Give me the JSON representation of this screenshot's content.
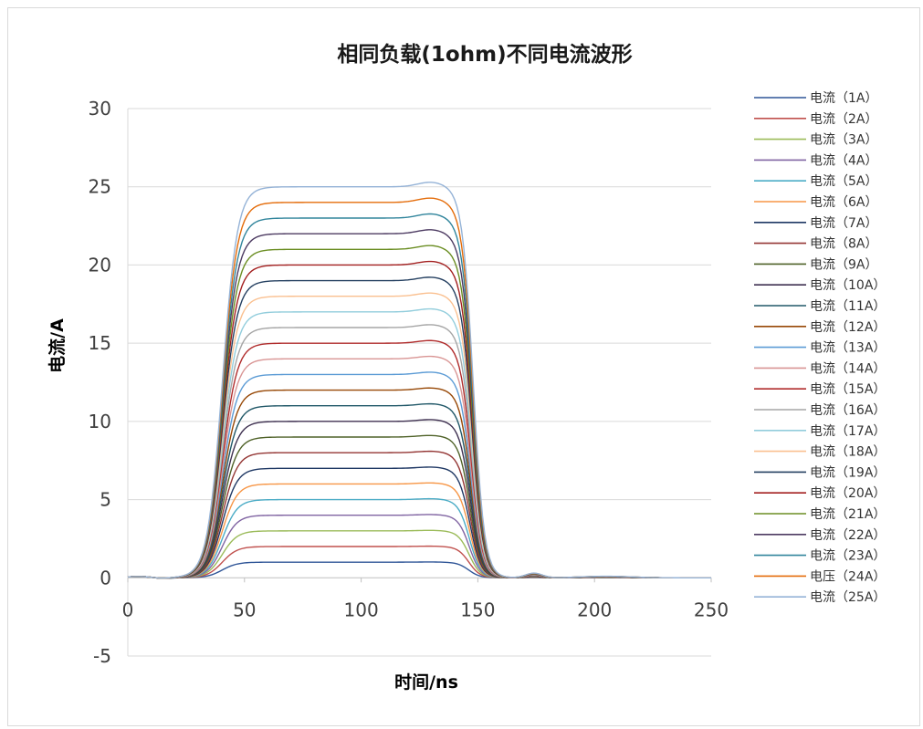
{
  "chart_data": {
    "type": "line",
    "title": "相同负载(1ohm)不同电流波形",
    "xlabel": "时间/ns",
    "ylabel": "电流/A",
    "xlim": [
      0,
      250
    ],
    "ylim": [
      -5,
      30
    ],
    "xticks": [
      "0",
      "50",
      "100",
      "150",
      "200",
      "250"
    ],
    "yticks": [
      "-5",
      "0",
      "5",
      "10",
      "15",
      "20",
      "25",
      "30"
    ],
    "grid": true,
    "legend_position": "right",
    "series": [
      {
        "name": "电流（1A）",
        "color": "#2f5597",
        "plateau": 1
      },
      {
        "name": "电流（2A）",
        "color": "#c0504d",
        "plateau": 2
      },
      {
        "name": "电流（3A）",
        "color": "#9bbb59",
        "plateau": 3
      },
      {
        "name": "电流（4A）",
        "color": "#8064a2",
        "plateau": 4
      },
      {
        "name": "电流（5A）",
        "color": "#4bacc6",
        "plateau": 5
      },
      {
        "name": "电流（6A）",
        "color": "#f79646",
        "plateau": 6
      },
      {
        "name": "电流（7A）",
        "color": "#1f3864",
        "plateau": 7
      },
      {
        "name": "电流（8A）",
        "color": "#943634",
        "plateau": 8
      },
      {
        "name": "电流（9A）",
        "color": "#4f6228",
        "plateau": 9
      },
      {
        "name": "电流（10A）",
        "color": "#3f3151",
        "plateau": 10
      },
      {
        "name": "电流（11A）",
        "color": "#215868",
        "plateau": 11
      },
      {
        "name": "电流（12A）",
        "color": "#974806",
        "plateau": 12
      },
      {
        "name": "电流（13A）",
        "color": "#5b9bd5",
        "plateau": 13
      },
      {
        "name": "电流（14A）",
        "color": "#d99594",
        "plateau": 14
      },
      {
        "name": "电流（15A）",
        "color": "#b02c2c",
        "plateau": 15
      },
      {
        "name": "电流（16A）",
        "color": "#a5a5a5",
        "plateau": 16
      },
      {
        "name": "电流（17A）",
        "color": "#92cddc",
        "plateau": 17
      },
      {
        "name": "电流（18A）",
        "color": "#fac090",
        "plateau": 18
      },
      {
        "name": "电流（19A）",
        "color": "#254061",
        "plateau": 19
      },
      {
        "name": "电流（20A）",
        "color": "#a32020",
        "plateau": 20
      },
      {
        "name": "电流（21A）",
        "color": "#6b8e23",
        "plateau": 21
      },
      {
        "name": "电流（22A）",
        "color": "#4d3b62",
        "plateau": 22
      },
      {
        "name": "电流（23A）",
        "color": "#31859c",
        "plateau": 23
      },
      {
        "name": "电压（24A）",
        "color": "#e46c0a",
        "plateau": 24
      },
      {
        "name": "电流（25A）",
        "color": "#95b3d7",
        "plateau": 25
      }
    ]
  }
}
